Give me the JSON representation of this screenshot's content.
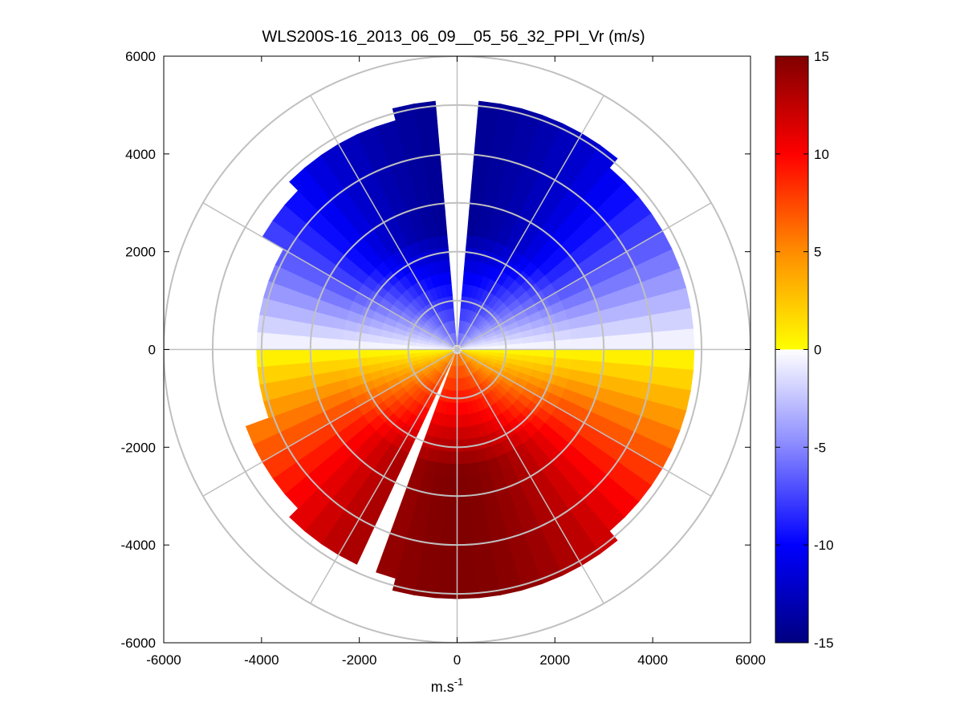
{
  "chart_data": {
    "type": "heatmap",
    "subtype": "polar-ppi",
    "title": "WLS200S-16_2013_06_09__05_56_32_PPI_Vr (m/s)",
    "xlabel_base": "m.s",
    "xlabel_exp": "-1",
    "ylabel": "",
    "xlim": [
      -6000,
      6000
    ],
    "ylim": [
      -6000,
      6000
    ],
    "x_ticks": [
      -6000,
      -4000,
      -2000,
      0,
      2000,
      4000,
      6000
    ],
    "y_ticks": [
      -6000,
      -4000,
      -2000,
      0,
      2000,
      4000,
      6000
    ],
    "x_tick_labels": [
      "-6000",
      "-4000",
      "-2000",
      "0",
      "2000",
      "4000",
      "6000"
    ],
    "y_tick_labels": [
      "6000",
      "4000",
      "2000",
      "0",
      "-2000",
      "-4000",
      "-6000"
    ],
    "polar_grid": {
      "range_rings_m": [
        1000,
        2000,
        3000,
        4000,
        5000,
        6000
      ],
      "spokes_deg": [
        0,
        30,
        60,
        90,
        120,
        150,
        180,
        210,
        240,
        270,
        300,
        330
      ]
    },
    "colorbar": {
      "range": [
        -15,
        15
      ],
      "ticks": [
        15,
        10,
        5,
        0,
        -5,
        -10,
        -15
      ],
      "tick_labels": [
        "15",
        "10",
        "5",
        "0",
        "-5",
        "-10",
        "-15"
      ],
      "colormap": "blue-white-yellow-red",
      "color_stops": [
        "#000080",
        "#0000ff",
        "#8c8cff",
        "#ffffff",
        "#ffff00",
        "#ff8c00",
        "#ff0000",
        "#800000"
      ]
    },
    "field": {
      "description_units": "m/s",
      "max_range_m": 5000,
      "sector_deg": 5,
      "gate_m": 250,
      "peak_velocity": 15,
      "northern_half_sign": "negative (approaching)",
      "southern_half_sign": "positive (receding)"
    }
  }
}
